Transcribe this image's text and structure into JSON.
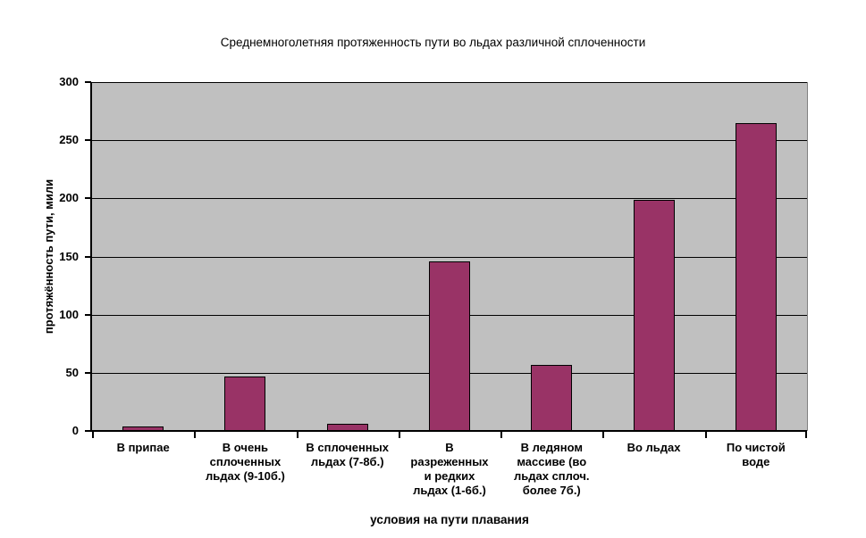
{
  "chart_data": {
    "type": "bar",
    "title": "Среднемноголетняя протяженность пути во льдах различной сплоченности",
    "xlabel": "условия на пути плавания",
    "ylabel": "протяжённость пути, мили",
    "ylim": [
      0,
      300
    ],
    "ytick_step": 50,
    "yticks": [
      0,
      50,
      100,
      150,
      200,
      250,
      300
    ],
    "categories": [
      "В припае",
      "В очень\nсплоченных\nльдах (9-10б.)",
      "В сплоченных\nльдах (7-8б.)",
      "В\nразреженных\nи редких\nльдах (1-6б.)",
      "В ледяном\nмассиве (во\nльдах сплоч.\nболее 7б.)",
      "Во льдах",
      "По чистой\nводе"
    ],
    "values": [
      4,
      47,
      6,
      146,
      57,
      199,
      265
    ],
    "grid": true,
    "legend": false,
    "colors": {
      "bar_fill": "#993366",
      "bar_border": "#000000",
      "plot_background": "#C0C0C0",
      "gridline": "#000000",
      "plot_border": "#808080",
      "axis": "#000000",
      "text": "#000000",
      "page_background": "#FFFFFF"
    }
  }
}
